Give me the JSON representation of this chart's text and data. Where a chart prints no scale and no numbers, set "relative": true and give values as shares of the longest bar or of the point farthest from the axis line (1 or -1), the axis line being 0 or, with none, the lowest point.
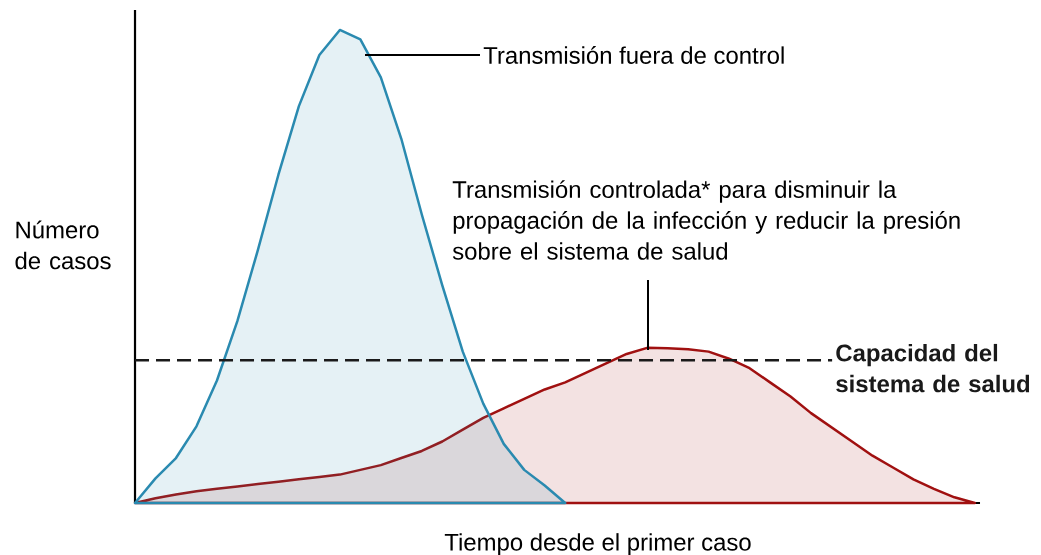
{
  "chart_data": {
    "type": "area",
    "relative": true,
    "xlabel": "Tiempo desde el primer caso",
    "ylabel": "Número de casos",
    "categories": [
      null,
      null,
      null,
      null,
      null,
      null,
      null,
      null,
      null,
      null,
      null,
      null,
      null,
      null,
      null,
      null,
      null,
      null,
      null,
      null,
      null,
      null,
      null,
      null,
      null,
      null,
      null,
      null,
      null,
      null,
      null,
      null,
      null,
      null,
      null,
      null,
      null,
      null,
      null,
      null,
      null,
      null
    ],
    "series": [
      {
        "color": "#a01010",
        "values": [
          0,
          0.01,
          0.018,
          0.025,
          0.03,
          0.035,
          0.04,
          0.045,
          0.05,
          0.055,
          0.06,
          0.07,
          0.08,
          0.095,
          0.11,
          0.13,
          0.155,
          0.18,
          0.2,
          0.22,
          0.24,
          0.255,
          0.275,
          0.295,
          0.315,
          0.328,
          0.327,
          0.325,
          0.32,
          0.305,
          0.285,
          0.255,
          0.225,
          0.19,
          0.16,
          0.13,
          0.1,
          0.075,
          0.05,
          0.03,
          0.012,
          0
        ]
      },
      {
        "color": "#2a8ab0",
        "values": [
          0,
          0.052,
          0.095,
          0.162,
          0.259,
          0.385,
          0.535,
          0.694,
          0.839,
          0.947,
          1,
          0.98,
          0.9,
          0.77,
          0.61,
          0.46,
          0.32,
          0.21,
          0.125,
          0.07,
          0.037,
          0,
          null,
          null,
          null,
          null,
          null,
          null,
          null,
          null,
          null,
          null,
          null,
          null,
          null,
          null,
          null,
          null,
          null,
          null,
          null,
          null
        ]
      }
    ],
    "ref_lines": [
      {
        "axis": "y",
        "value": 0.302,
        "label": "Capacidad del sistema de salud",
        "color": "#1a1a1a",
        "line_style": "dashed"
      }
    ],
    "annotations": [
      "Transmisión fuera de control",
      "Transmisión controlada* para disminuir la propagación de la infección y reducir la presión sobre el sistema de salud"
    ],
    "line_style": "solid"
  }
}
